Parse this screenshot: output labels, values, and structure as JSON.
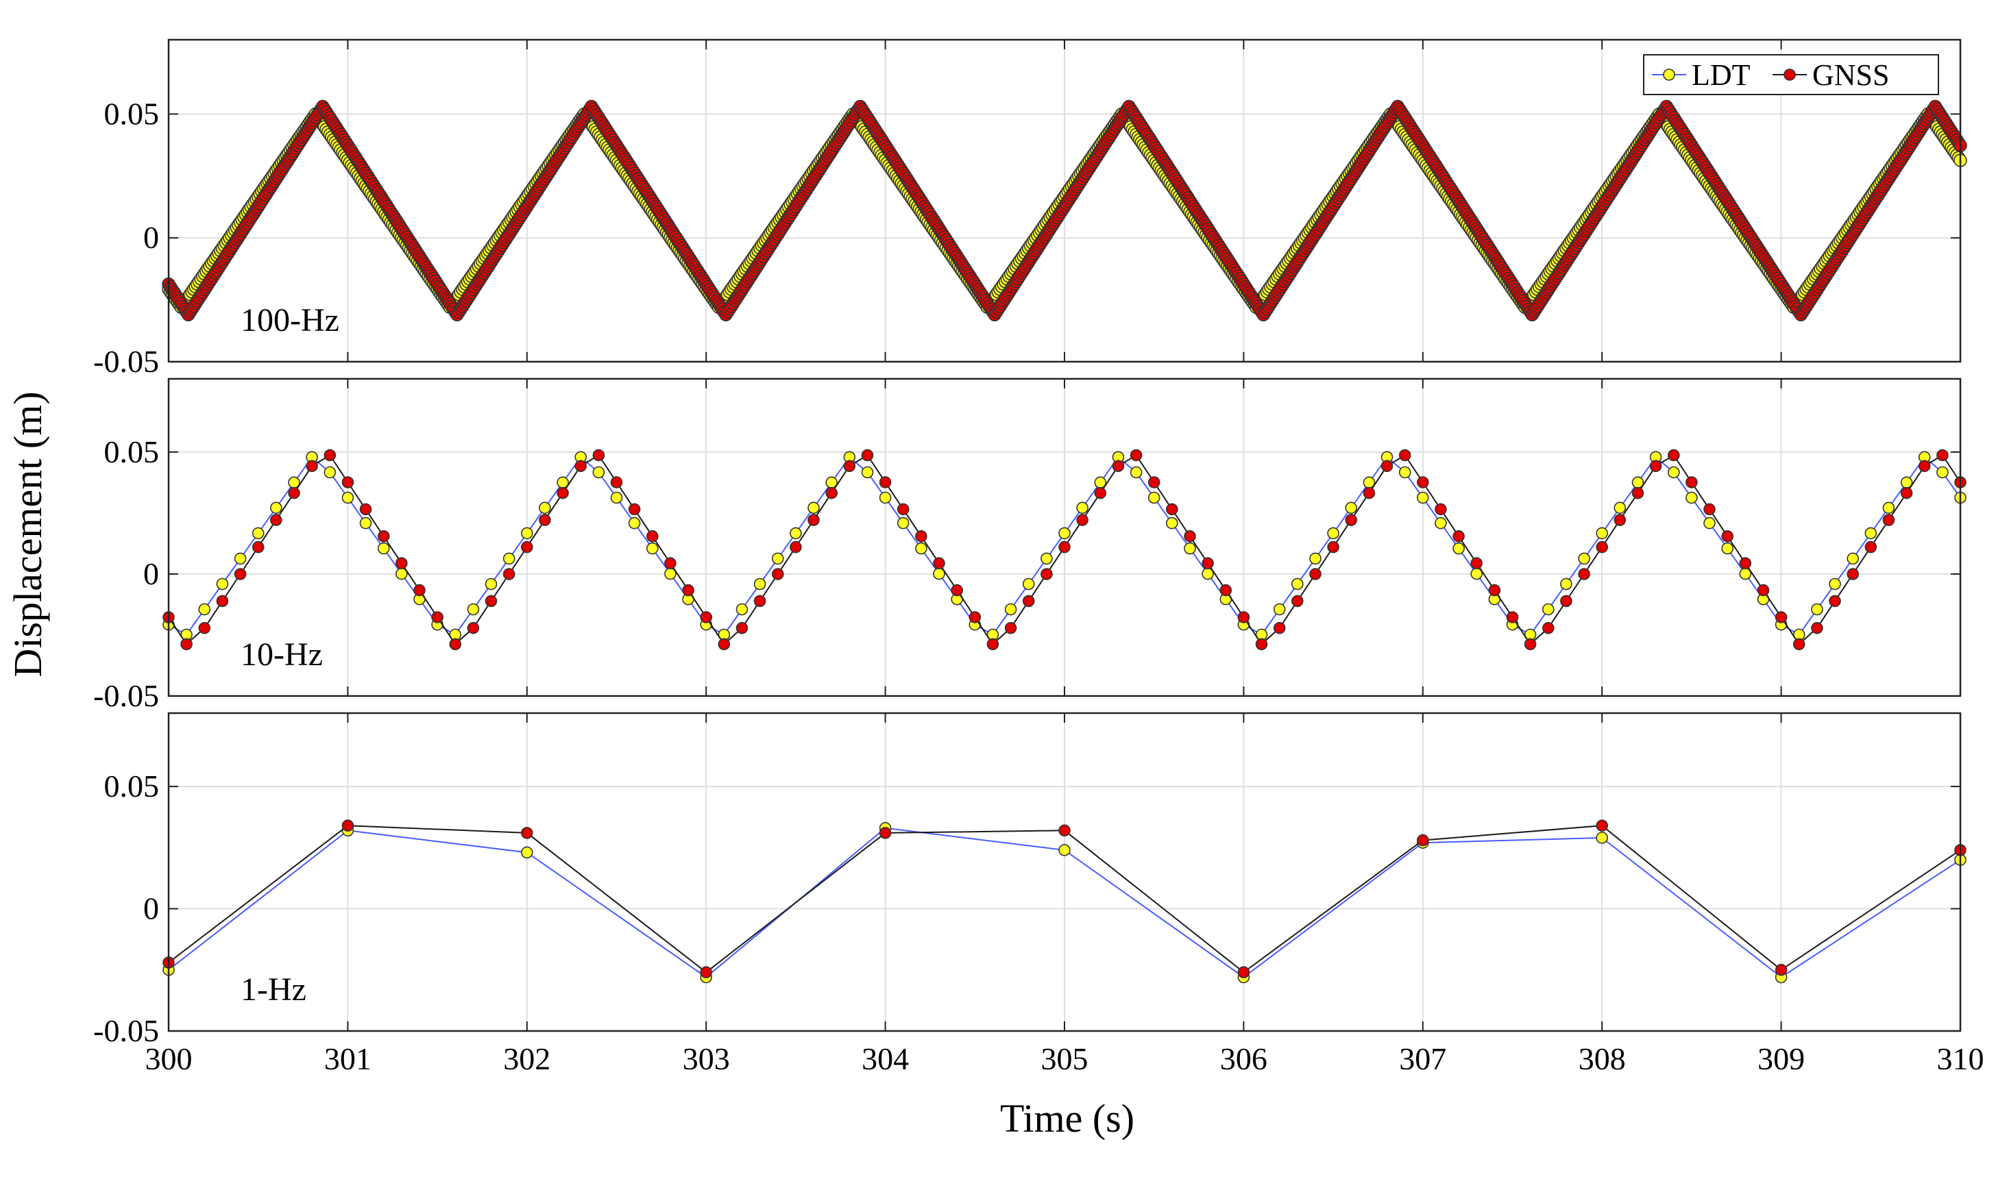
{
  "figure": {
    "ylabel": "Displacement (m)",
    "xlabel": "Time (s)"
  },
  "colors": {
    "ldt_line": "#4a5cff",
    "ldt_marker": "#ffff22",
    "gnss_line": "#1a1a1a",
    "gnss_marker": "#e00000",
    "grid": "#dedede",
    "axes": "#222222"
  },
  "chart_data": [
    {
      "type": "line",
      "panel_label": "100-Hz",
      "xlim": [
        300,
        310
      ],
      "ylim": [
        -0.05,
        0.08
      ],
      "ytick_labels": [
        "-0.05",
        "0",
        "0.05"
      ],
      "xtick_labels": [],
      "grid": true,
      "legend": {
        "placement": "top-right",
        "entries": [
          "LDT",
          "GNSS"
        ]
      },
      "series": [
        {
          "name": "LDT",
          "sample_rate_hz": 100,
          "t0": 300.0,
          "period": 1.5,
          "peak_time": 300.82,
          "peak": 0.05,
          "trough": -0.028,
          "phase_shift": 0.0
        },
        {
          "name": "GNSS",
          "sample_rate_hz": 100,
          "t0": 300.0,
          "period": 1.5,
          "peak_time": 300.82,
          "peak": 0.053,
          "trough": -0.031,
          "phase_shift": 0.04
        }
      ]
    },
    {
      "type": "line",
      "panel_label": "10-Hz",
      "xlim": [
        300,
        310
      ],
      "ylim": [
        -0.05,
        0.08
      ],
      "ytick_labels": [
        "-0.05",
        "0",
        "0.05"
      ],
      "xtick_labels": [],
      "grid": true,
      "series": [
        {
          "name": "LDT",
          "sample_rate_hz": 10,
          "t0": 300.0,
          "period": 1.5,
          "peak_time": 300.82,
          "peak": 0.05,
          "trough": -0.028,
          "phase_shift": 0.0
        },
        {
          "name": "GNSS",
          "sample_rate_hz": 10,
          "t0": 300.0,
          "period": 1.5,
          "peak_time": 300.82,
          "peak": 0.052,
          "trough": -0.031,
          "phase_shift": 0.05
        }
      ]
    },
    {
      "type": "line",
      "panel_label": "1-Hz",
      "xlim": [
        300,
        310
      ],
      "ylim": [
        -0.05,
        0.08
      ],
      "ytick_labels": [
        "-0.05",
        "0",
        "0.05"
      ],
      "xtick_labels": [
        "300",
        "301",
        "302",
        "303",
        "304",
        "305",
        "306",
        "307",
        "308",
        "309",
        "310"
      ],
      "grid": true,
      "series": [
        {
          "name": "LDT",
          "x": [
            300,
            301,
            302,
            303,
            304,
            305,
            306,
            307,
            308,
            309,
            310
          ],
          "y": [
            -0.025,
            0.032,
            0.023,
            -0.028,
            0.033,
            0.024,
            -0.028,
            0.027,
            0.029,
            -0.028,
            0.02
          ]
        },
        {
          "name": "GNSS",
          "x": [
            300,
            301,
            302,
            303,
            304,
            305,
            306,
            307,
            308,
            309,
            310
          ],
          "y": [
            -0.022,
            0.034,
            0.031,
            -0.026,
            0.031,
            0.032,
            -0.026,
            0.028,
            0.034,
            -0.025,
            0.024
          ]
        }
      ]
    }
  ]
}
